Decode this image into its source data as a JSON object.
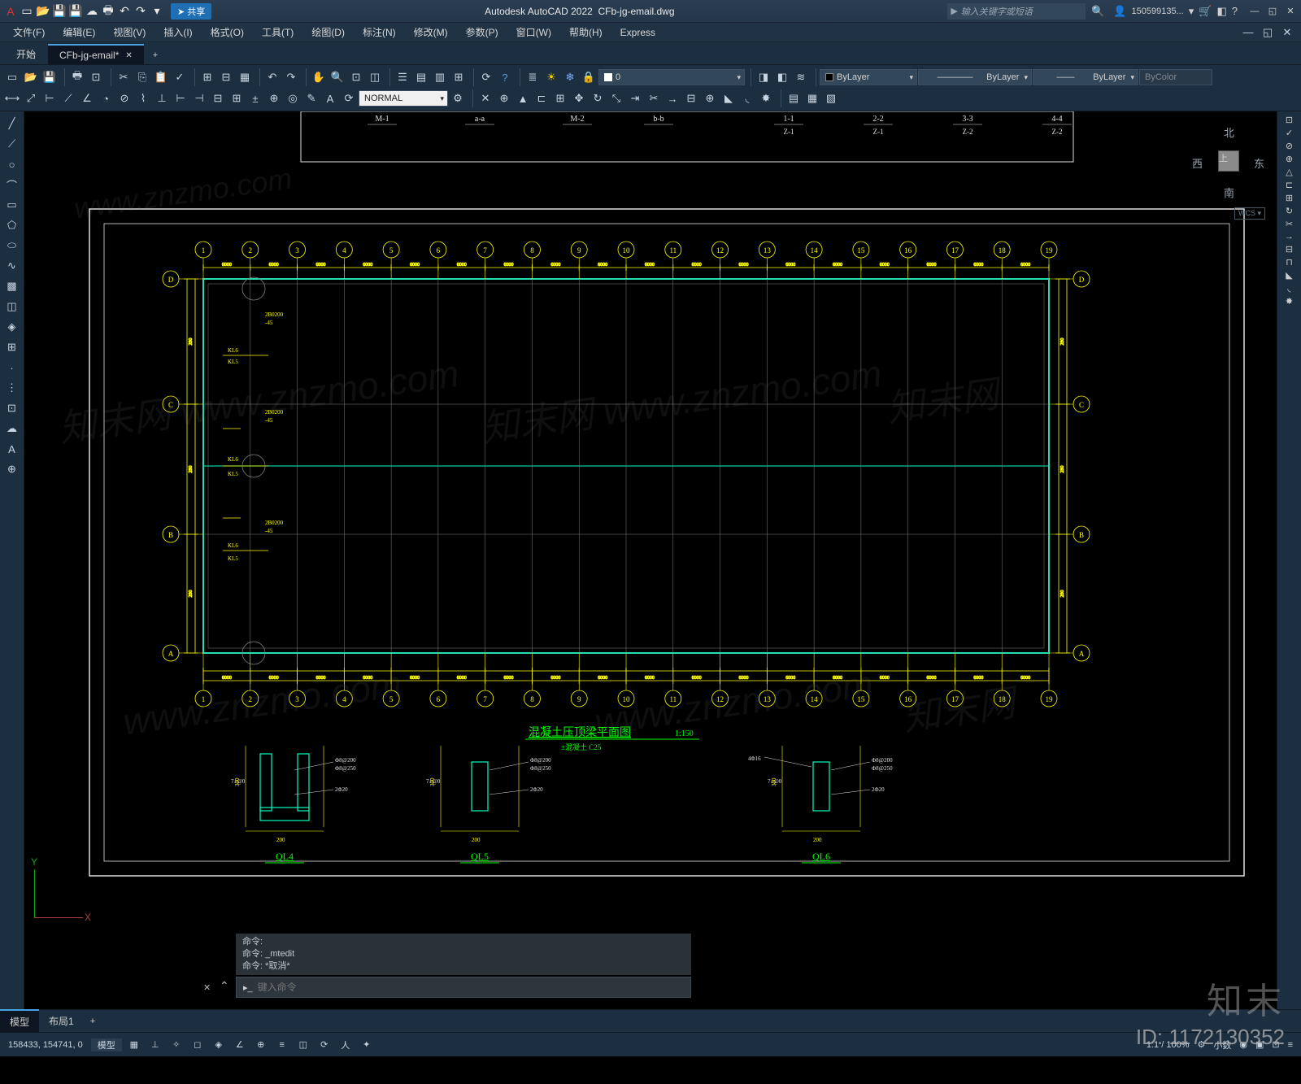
{
  "app": {
    "name": "Autodesk AutoCAD 2022",
    "filename": "CFb-jg-email.dwg"
  },
  "share_label": "共享",
  "search_placeholder": "输入关键字或短语",
  "user": "150599135...",
  "menu": [
    "文件(F)",
    "编辑(E)",
    "视图(V)",
    "插入(I)",
    "格式(O)",
    "工具(T)",
    "绘图(D)",
    "标注(N)",
    "修改(M)",
    "参数(P)",
    "窗口(W)",
    "帮助(H)",
    "Express"
  ],
  "tabs": {
    "start": "开始",
    "active": "CFb-jg-email*"
  },
  "linetype_normal": "NORMAL",
  "props": {
    "layer_sel": "ByLayer",
    "linetype": "ByLayer",
    "lineweight": "ByLayer",
    "color": "ByColor",
    "colorval": "0"
  },
  "viewcube": {
    "n": "北",
    "s": "南",
    "e": "东",
    "w": "西"
  },
  "axis": {
    "x": "X",
    "y": "Y"
  },
  "cmd": {
    "h1": "命令:",
    "h2": "命令: _mtedit",
    "h3": "命令: *取消*",
    "prompt": "▸_",
    "placeholder": "键入命令"
  },
  "model_tabs": {
    "model": "模型",
    "layout": "布局1"
  },
  "status": {
    "coords": "158433, 154741, 0",
    "model": "模型",
    "scale": "1:1 / 100%",
    "extra": "小数"
  },
  "top_labels": [
    {
      "t": "M-1"
    },
    {
      "t": "a-a"
    },
    {
      "t": "M-2"
    },
    {
      "t": "b-b"
    },
    {
      "t": "1-1",
      "sub": "Z-1"
    },
    {
      "t": "2-2",
      "sub": "Z-1"
    },
    {
      "t": "3-3",
      "sub": "Z-2"
    },
    {
      "t": "4-4",
      "sub": "Z-2"
    }
  ],
  "grid": {
    "count": 19,
    "dim_text": "6000",
    "vlabels": [
      "A",
      "B",
      "C",
      "D"
    ],
    "small_text": [
      "KL6",
      "KL5",
      "2B0200",
      "-45",
      "-45",
      "100",
      "280",
      "280",
      "140"
    ]
  },
  "plan_title": {
    "text": "混凝土压顶梁平面图",
    "scale": "1:150",
    "sub": "±混凝土 C25"
  },
  "details": {
    "d1": "QL4",
    "d2": "QL5",
    "d3": "QL6"
  },
  "detail_dims": [
    "200",
    "300",
    "240",
    "50",
    "100",
    "Φ8@200",
    "7±@0",
    "2Φ20",
    "Φ8@250",
    "4Φ16",
    "100",
    "300"
  ],
  "watermarks": [
    "知末网  www.znzmo.com",
    "知末网",
    "www.znzmo.com"
  ],
  "brand": "知末",
  "id_text": "ID: 1172130352",
  "colors": {
    "ui_bg": "#1c2f40",
    "ui_bg2": "#273a4d",
    "accent": "#4aa0e0",
    "grid_yellow": "#ffff00",
    "cyan": "#00ffc0",
    "green": "#00ff00",
    "white": "#e8e8e8",
    "gray": "#808080"
  }
}
